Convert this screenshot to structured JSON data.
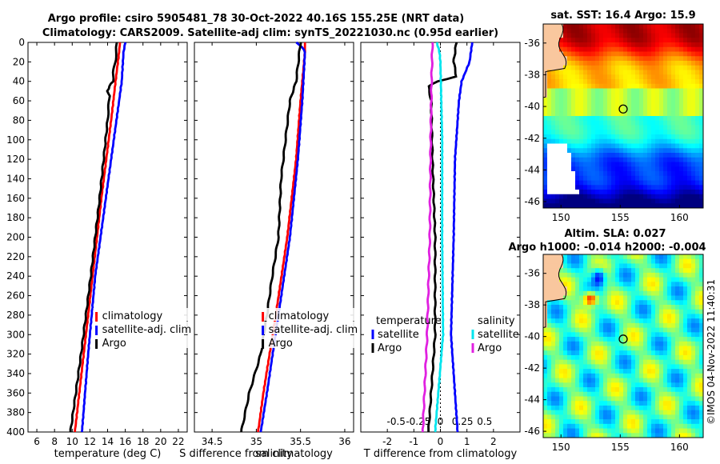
{
  "header": {
    "line1": "Argo profile: csiro 5905481_78 30-Oct-2022 40.16S 155.25E (NRT data)",
    "line2": "Climatology: CARS2009. Satellite-adj clim: synTS_20221030.nc (0.95d earlier)"
  },
  "credit": "©IMOS 04-Nov-2022 11:40:31",
  "colors": {
    "clim": "#ff0000",
    "sat": "#0000ff",
    "argo": "#000000",
    "sat_s": "#00e5ee",
    "argo_s": "#e020e0",
    "land": "#f9c79e"
  },
  "chart_data": [
    {
      "type": "line",
      "title": "",
      "xlabel": "temperature (deg C)",
      "ylabel": "",
      "xlim": [
        5,
        23
      ],
      "ylim": [
        400,
        0
      ],
      "xticks": [
        "6",
        "8",
        "10",
        "12",
        "14",
        "16",
        "18",
        "20",
        "22"
      ],
      "yticks": [
        "0",
        "20",
        "40",
        "60",
        "80",
        "100",
        "120",
        "140",
        "160",
        "180",
        "200",
        "220",
        "240",
        "260",
        "280",
        "300",
        "320",
        "340",
        "360",
        "380",
        "400"
      ],
      "legend": [
        "climatology",
        "satellite-adj. clim",
        "Argo"
      ],
      "legend_position": "lower-right",
      "series": [
        {
          "name": "climatology",
          "color": "red",
          "depth": [
            0,
            10,
            40,
            80,
            160,
            240,
            320,
            400
          ],
          "values": [
            15.4,
            15.3,
            14.9,
            14.4,
            13.3,
            12.3,
            11.3,
            10.3
          ]
        },
        {
          "name": "satellite-adj. clim",
          "color": "blue",
          "depth": [
            0,
            10,
            40,
            80,
            160,
            240,
            320,
            400
          ],
          "values": [
            16.0,
            15.8,
            15.6,
            15.0,
            13.8,
            12.6,
            11.8,
            11.1
          ]
        },
        {
          "name": "Argo",
          "color": "black",
          "depth": [
            0,
            5,
            18,
            25,
            40,
            45,
            50,
            55,
            80,
            160,
            240,
            320,
            400
          ],
          "values": [
            15.0,
            15.0,
            14.9,
            14.7,
            14.6,
            14.2,
            14.0,
            14.2,
            14.0,
            13.1,
            12.1,
            11.0,
            9.8
          ]
        }
      ]
    },
    {
      "type": "line",
      "xlabel": "salinity",
      "ylabel": "",
      "xlim": [
        34.3,
        36.1
      ],
      "ylim": [
        400,
        0
      ],
      "xticks": [
        "34.5",
        "35",
        "35.5",
        "36"
      ],
      "legend": [
        "climatology",
        "satellite-adj. clim",
        "Argo"
      ],
      "legend_position": "lower-right",
      "series": [
        {
          "name": "climatology",
          "color": "red",
          "depth": [
            0,
            10,
            60,
            120,
            200,
            280,
            360,
            400
          ],
          "values": [
            35.55,
            35.55,
            35.5,
            35.45,
            35.35,
            35.22,
            35.08,
            35.02
          ]
        },
        {
          "name": "satellite-adj. clim",
          "color": "blue",
          "depth": [
            0,
            5,
            10,
            60,
            120,
            200,
            280,
            360,
            400
          ],
          "values": [
            35.45,
            35.52,
            35.55,
            35.52,
            35.47,
            35.38,
            35.25,
            35.12,
            35.05
          ]
        },
        {
          "name": "Argo",
          "color": "black",
          "depth": [
            0,
            40,
            60,
            100,
            140,
            200,
            240,
            280,
            320,
            360,
            400
          ],
          "values": [
            35.5,
            35.45,
            35.38,
            35.33,
            35.28,
            35.25,
            35.18,
            35.12,
            35.05,
            34.92,
            34.83
          ]
        }
      ]
    },
    {
      "type": "line",
      "xlabel": "T difference from climatology",
      "x2label": "S difference from climatology",
      "xlim": [
        -3,
        3
      ],
      "x2lim": [
        -0.9,
        0.9
      ],
      "ylim": [
        400,
        0
      ],
      "xticks": [
        "-2",
        "-1",
        "0",
        "1",
        "2"
      ],
      "x2ticks": [
        "-0.5",
        "-0.25",
        "0",
        "0.25",
        "0.5"
      ],
      "legend": [
        "temperature",
        "satellite",
        "Argo",
        "salinity",
        "satellite",
        "Argo"
      ],
      "series": [
        {
          "name": "temperature satellite",
          "color": "blue",
          "depth": [
            0,
            20,
            40,
            60,
            120,
            200,
            300,
            400
          ],
          "values": [
            1.2,
            1.1,
            0.8,
            0.7,
            0.55,
            0.5,
            0.4,
            0.65
          ]
        },
        {
          "name": "temperature Argo",
          "color": "black",
          "depth": [
            0,
            20,
            35,
            40,
            45,
            60,
            120,
            200,
            300,
            400
          ],
          "values": [
            0.6,
            0.5,
            0.6,
            -0.1,
            -0.45,
            -0.35,
            -0.3,
            -0.2,
            -0.2,
            -0.45
          ]
        },
        {
          "name": "salinity satellite",
          "color": "cyan",
          "depth": [
            0,
            10,
            20,
            100,
            200,
            300,
            400
          ],
          "values": [
            -0.04,
            -0.01,
            0.0,
            0.02,
            0.02,
            0.03,
            -0.06
          ]
        },
        {
          "name": "salinity Argo",
          "color": "magenta",
          "depth": [
            0,
            40,
            100,
            200,
            300,
            400
          ],
          "values": [
            -0.09,
            -0.1,
            -0.11,
            -0.12,
            -0.15,
            -0.2
          ]
        }
      ]
    },
    {
      "type": "heatmap",
      "title": "sat. SST: 16.4 Argo: 15.9",
      "xlim": [
        148.5,
        162
      ],
      "ylim": [
        -46.4,
        -34.8
      ],
      "xticks": [
        "150",
        "155",
        "160"
      ],
      "yticks": [
        "-36",
        "-38",
        "-40",
        "-42",
        "-44",
        "-46"
      ],
      "marker": {
        "lon": 155.25,
        "lat": -40.16
      }
    },
    {
      "type": "heatmap",
      "title": "Altim. SLA: 0.027",
      "subtitle": "Argo h1000: -0.014 h2000: -0.004",
      "xlim": [
        148.5,
        162
      ],
      "ylim": [
        -46.4,
        -34.8
      ],
      "xticks": [
        "150",
        "155",
        "160"
      ],
      "yticks": [
        "-36",
        "-38",
        "-40",
        "-42",
        "-44",
        "-46"
      ],
      "marker": {
        "lon": 155.25,
        "lat": -40.16
      }
    }
  ]
}
